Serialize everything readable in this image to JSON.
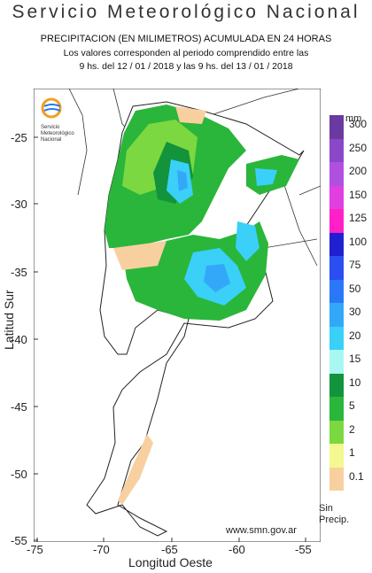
{
  "header": {
    "title": "Servicio  Meteorológico  Nacional",
    "line1": "PRECIPITACION (EN MILIMETROS) ACUMULADA EN 24 HORAS",
    "line2": "Los valores corresponden al periodo comprendido entre las",
    "line3": "9 hs. del 12 / 01 / 2018  y las 9 hs. del 13 / 01 / 2018"
  },
  "logo": {
    "line1": "Servicio",
    "line2": "Meteorológico",
    "line3": "Nacional"
  },
  "axes": {
    "ylabel": "Latitud Sur",
    "xlabel": "Longitud Oeste",
    "yticks": [
      "-25",
      "-30",
      "-35",
      "-40",
      "-45",
      "-50",
      "-55"
    ],
    "xticks": [
      "-75",
      "-70",
      "-65",
      "-60",
      "-55"
    ]
  },
  "legend": {
    "unit": "mm",
    "items": [
      {
        "label": "300",
        "color": "#6b3aa0"
      },
      {
        "label": "250",
        "color": "#8a48c8"
      },
      {
        "label": "200",
        "color": "#b050e0"
      },
      {
        "label": "150",
        "color": "#e040e0"
      },
      {
        "label": "125",
        "color": "#ff20c8"
      },
      {
        "label": "100",
        "color": "#2020d0"
      },
      {
        "label": "75",
        "color": "#2a4ef0"
      },
      {
        "label": "50",
        "color": "#2a78f8"
      },
      {
        "label": "30",
        "color": "#34a8f8"
      },
      {
        "label": "20",
        "color": "#3ad0f8"
      },
      {
        "label": "15",
        "color": "#a8f8f0"
      },
      {
        "label": "10",
        "color": "#13933c"
      },
      {
        "label": "5",
        "color": "#2ab63a"
      },
      {
        "label": "2",
        "color": "#7cd840"
      },
      {
        "label": "1",
        "color": "#f4f890"
      },
      {
        "label": "0.1",
        "color": "#f8d0a0"
      },
      {
        "label": "Sin\nPrecip.",
        "color": "#ffffff"
      }
    ]
  },
  "footer": {
    "site": "www.smn.gov.ar"
  }
}
